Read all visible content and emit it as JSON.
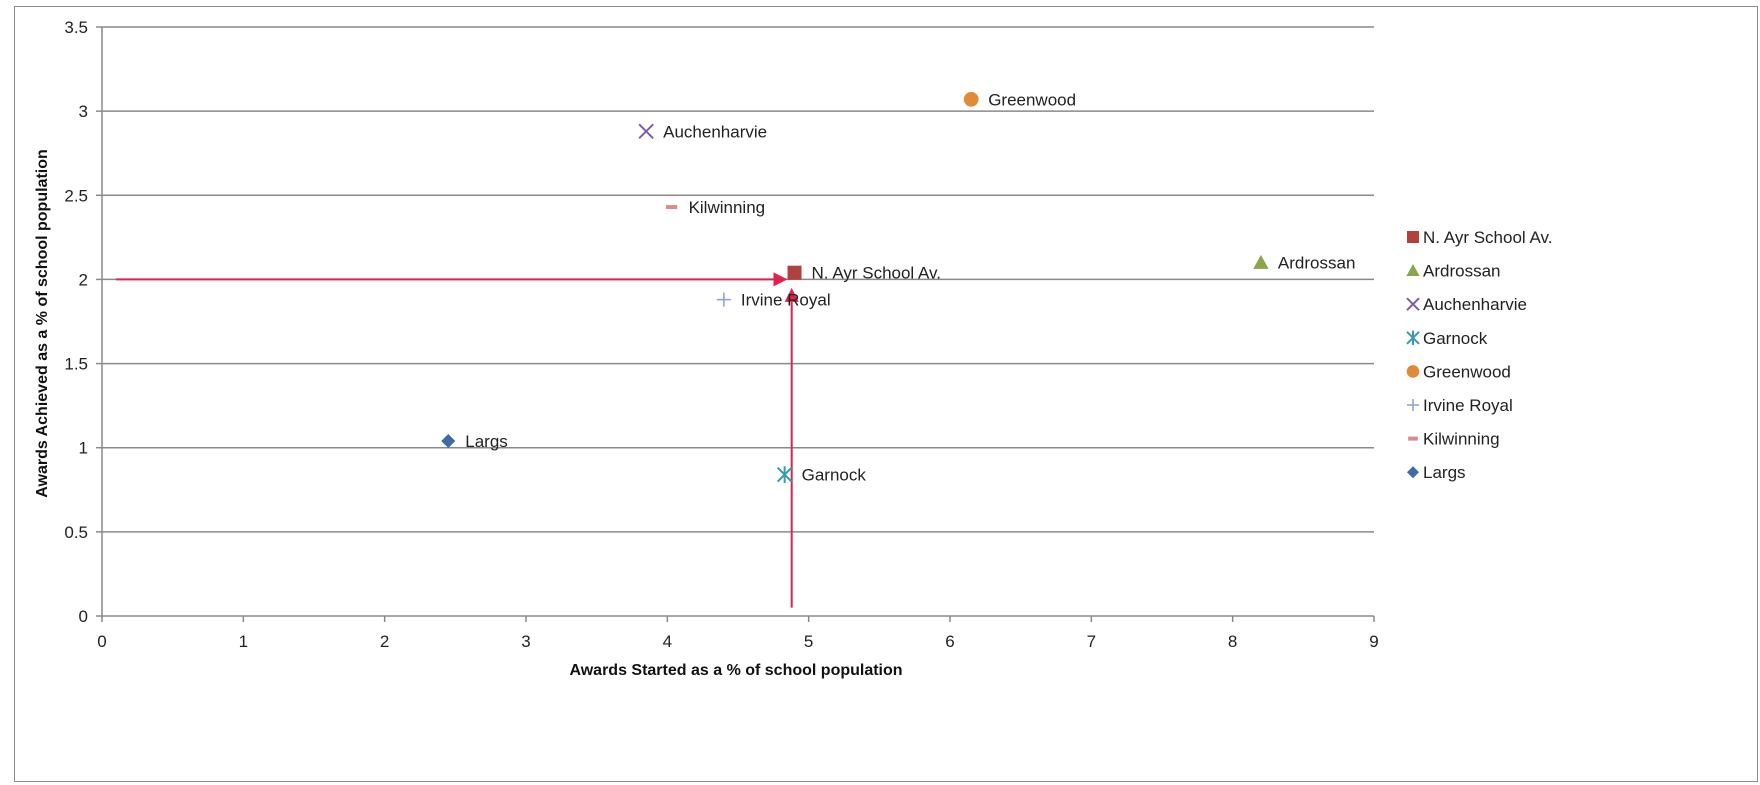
{
  "chart_data": {
    "type": "scatter",
    "title": "",
    "xlabel": "Awards Started as a % of school population",
    "ylabel": "Awards Achieved as a % of school population",
    "xlim": [
      0,
      9
    ],
    "ylim": [
      0,
      3.5
    ],
    "x_ticks": [
      "0",
      "1",
      "2",
      "3",
      "4",
      "5",
      "6",
      "7",
      "8",
      "9"
    ],
    "y_ticks": [
      "0",
      "0.5",
      "1",
      "1.5",
      "2",
      "2.5",
      "3",
      "3.5"
    ],
    "grid": "horizontal",
    "legend_position": "right",
    "series": [
      {
        "name": "N. Ayr School Av.",
        "x": 4.9,
        "y": 2.04,
        "marker": "square",
        "color": "#b0413e"
      },
      {
        "name": "Ardrossan",
        "x": 8.2,
        "y": 2.1,
        "marker": "triangle",
        "color": "#8aa64a"
      },
      {
        "name": "Auchenharvie",
        "x": 3.85,
        "y": 2.88,
        "marker": "x",
        "color": "#7b5fa6"
      },
      {
        "name": "Garnock",
        "x": 4.83,
        "y": 0.84,
        "marker": "asterisk",
        "color": "#3b9ab0"
      },
      {
        "name": "Greenwood",
        "x": 6.15,
        "y": 3.07,
        "marker": "circle",
        "color": "#e08a3a"
      },
      {
        "name": "Irvine Royal",
        "x": 4.4,
        "y": 1.88,
        "marker": "plus",
        "color": "#8fa6d0"
      },
      {
        "name": "Kilwinning",
        "x": 4.03,
        "y": 2.43,
        "marker": "dash",
        "color": "#d98a8a"
      },
      {
        "name": "Largs",
        "x": 2.45,
        "y": 1.04,
        "marker": "diamond",
        "color": "#3e6aa8"
      }
    ],
    "annotations": {
      "arrow_color": "#e0234e",
      "horizontal_arrow": {
        "from": [
          0.1,
          2.0
        ],
        "to": [
          4.85,
          2.0
        ]
      },
      "vertical_arrow": {
        "from": [
          4.88,
          0.05
        ],
        "to": [
          4.88,
          1.95
        ]
      }
    }
  }
}
